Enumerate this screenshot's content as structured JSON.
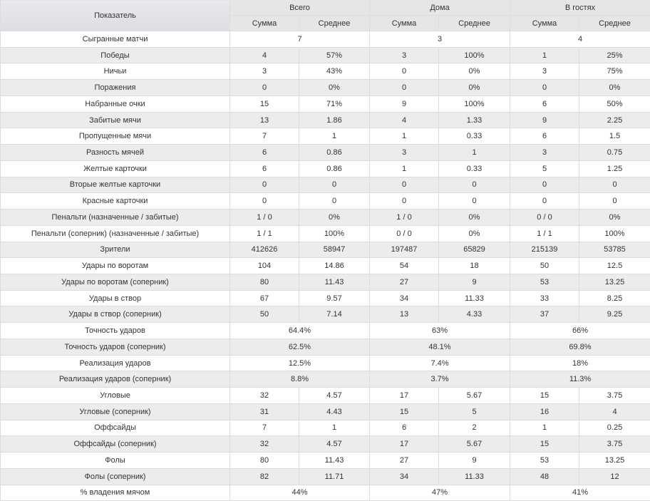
{
  "header": {
    "metric": "Показатель",
    "groups": [
      "Всего",
      "Дома",
      "В гостях"
    ],
    "sub": [
      "Сумма",
      "Среднее",
      "Сумма",
      "Среднее",
      "Сумма",
      "Среднее"
    ]
  },
  "rows": [
    {
      "label": "Сыгранные матчи",
      "merged": [
        "7",
        "3",
        "4"
      ]
    },
    {
      "label": "Победы",
      "cells": [
        "4",
        "57%",
        "3",
        "100%",
        "1",
        "25%"
      ]
    },
    {
      "label": "Ничьи",
      "cells": [
        "3",
        "43%",
        "0",
        "0%",
        "3",
        "75%"
      ]
    },
    {
      "label": "Поражения",
      "cells": [
        "0",
        "0%",
        "0",
        "0%",
        "0",
        "0%"
      ]
    },
    {
      "label": "Набранные очки",
      "cells": [
        "15",
        "71%",
        "9",
        "100%",
        "6",
        "50%"
      ]
    },
    {
      "label": "Забитые мячи",
      "cells": [
        "13",
        "1.86",
        "4",
        "1.33",
        "9",
        "2.25"
      ]
    },
    {
      "label": "Пропущенные мячи",
      "cells": [
        "7",
        "1",
        "1",
        "0.33",
        "6",
        "1.5"
      ]
    },
    {
      "label": "Разность мячей",
      "cells": [
        "6",
        "0.86",
        "3",
        "1",
        "3",
        "0.75"
      ]
    },
    {
      "label": "Желтые карточки",
      "cells": [
        "6",
        "0.86",
        "1",
        "0.33",
        "5",
        "1.25"
      ]
    },
    {
      "label": "Вторые желтые карточки",
      "cells": [
        "0",
        "0",
        "0",
        "0",
        "0",
        "0"
      ]
    },
    {
      "label": "Красные карточки",
      "cells": [
        "0",
        "0",
        "0",
        "0",
        "0",
        "0"
      ]
    },
    {
      "label": "Пенальти (назначенные / забитые)",
      "cells": [
        "1 / 0",
        "0%",
        "1 / 0",
        "0%",
        "0 / 0",
        "0%"
      ]
    },
    {
      "label": "Пенальти (соперник) (назначенные / забитые)",
      "cells": [
        "1 / 1",
        "100%",
        "0 / 0",
        "0%",
        "1 / 1",
        "100%"
      ]
    },
    {
      "label": "Зрители",
      "cells": [
        "412626",
        "58947",
        "197487",
        "65829",
        "215139",
        "53785"
      ]
    },
    {
      "label": "Удары по воротам",
      "cells": [
        "104",
        "14.86",
        "54",
        "18",
        "50",
        "12.5"
      ]
    },
    {
      "label": "Удары по воротам (соперник)",
      "cells": [
        "80",
        "11.43",
        "27",
        "9",
        "53",
        "13.25"
      ]
    },
    {
      "label": "Удары в створ",
      "cells": [
        "67",
        "9.57",
        "34",
        "11.33",
        "33",
        "8.25"
      ]
    },
    {
      "label": "Удары в створ (соперник)",
      "cells": [
        "50",
        "7.14",
        "13",
        "4.33",
        "37",
        "9.25"
      ]
    },
    {
      "label": "Точность ударов",
      "merged": [
        "64.4%",
        "63%",
        "66%"
      ]
    },
    {
      "label": "Точность ударов (соперник)",
      "merged": [
        "62.5%",
        "48.1%",
        "69.8%"
      ]
    },
    {
      "label": "Реализация ударов",
      "merged": [
        "12.5%",
        "7.4%",
        "18%"
      ]
    },
    {
      "label": "Реализация ударов (соперник)",
      "merged": [
        "8.8%",
        "3.7%",
        "11.3%"
      ]
    },
    {
      "label": "Угловые",
      "cells": [
        "32",
        "4.57",
        "17",
        "5.67",
        "15",
        "3.75"
      ]
    },
    {
      "label": "Угловые (соперник)",
      "cells": [
        "31",
        "4.43",
        "15",
        "5",
        "16",
        "4"
      ]
    },
    {
      "label": "Оффсайды",
      "cells": [
        "7",
        "1",
        "6",
        "2",
        "1",
        "0.25"
      ]
    },
    {
      "label": "Оффсайды (соперник)",
      "cells": [
        "32",
        "4.57",
        "17",
        "5.67",
        "15",
        "3.75"
      ]
    },
    {
      "label": "Фолы",
      "cells": [
        "80",
        "11.43",
        "27",
        "9",
        "53",
        "13.25"
      ]
    },
    {
      "label": "Фолы (соперник)",
      "cells": [
        "82",
        "11.71",
        "34",
        "11.33",
        "48",
        "12"
      ]
    },
    {
      "label": "% владения мячом",
      "merged": [
        "44%",
        "47%",
        "41%"
      ]
    }
  ]
}
